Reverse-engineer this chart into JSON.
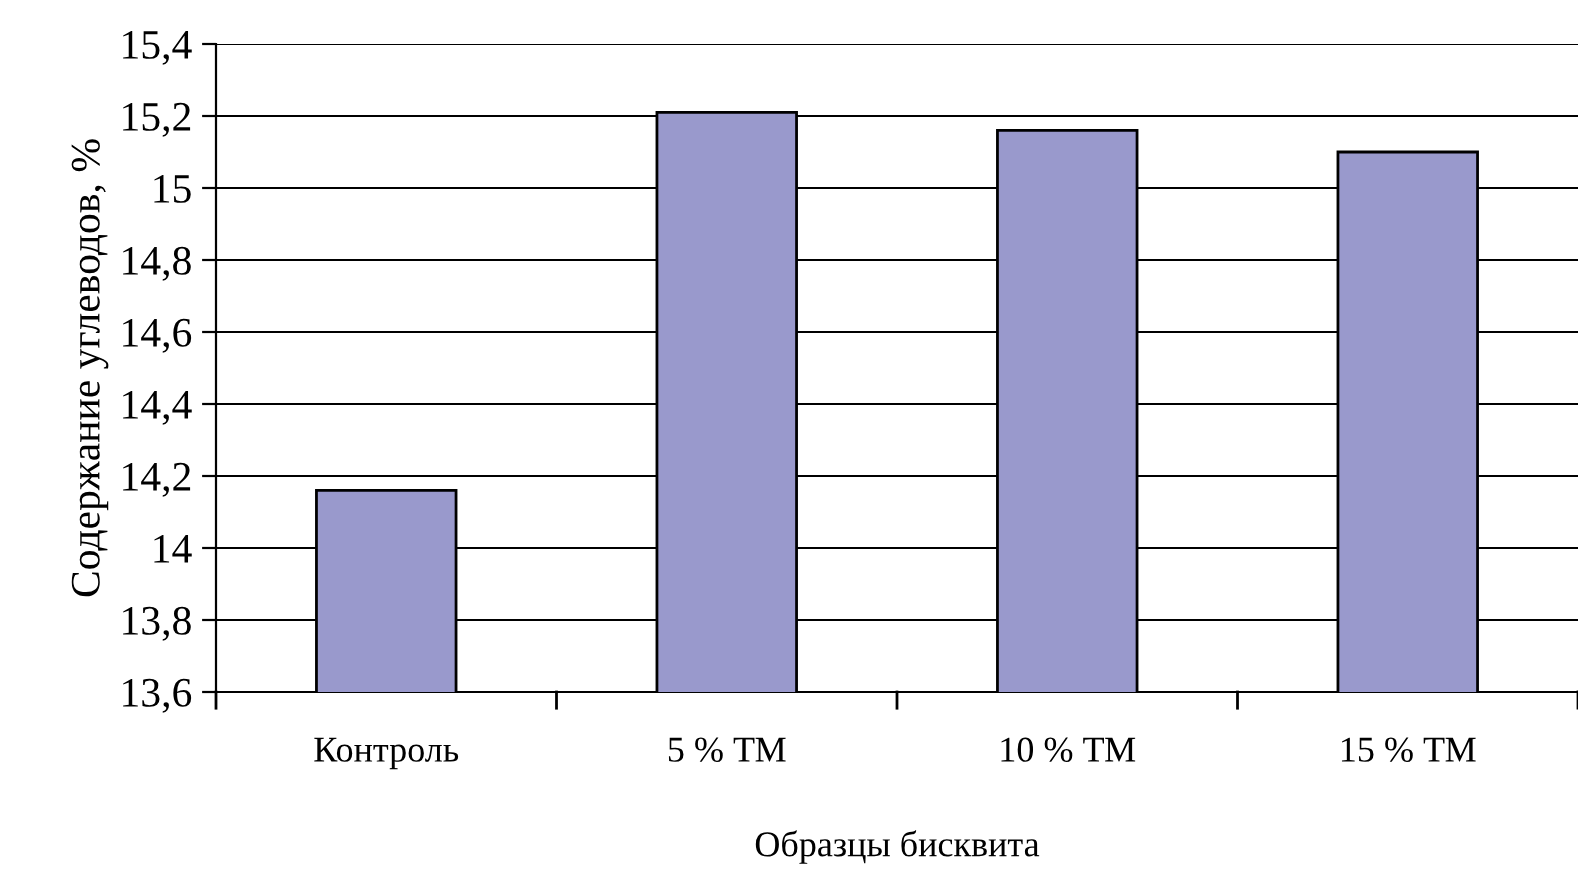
{
  "chart_data": {
    "type": "bar",
    "xlabel": "Образцы бисквита",
    "ylabel": "Содержание углеводов, %",
    "categories": [
      "Контроль",
      "5 % ТМ",
      "10 % ТМ",
      "15 % ТМ"
    ],
    "values": [
      14.16,
      15.21,
      15.16,
      15.1
    ],
    "color": "#9999cc",
    "ylim": [
      13.6,
      15.4
    ],
    "yticks": [
      {
        "value": 13.6,
        "label": "13,6"
      },
      {
        "value": 13.8,
        "label": "13,8"
      },
      14,
      {
        "value": 14.2,
        "label": "14,2"
      },
      {
        "value": 14.4,
        "label": "14,4"
      },
      {
        "value": 14.6,
        "label": "14,6"
      },
      {
        "value": 14.8,
        "label": "14,8"
      },
      15,
      {
        "value": 15.2,
        "label": "15,2"
      },
      {
        "value": 15.4,
        "label": "15,4"
      }
    ],
    "grid": "y"
  }
}
